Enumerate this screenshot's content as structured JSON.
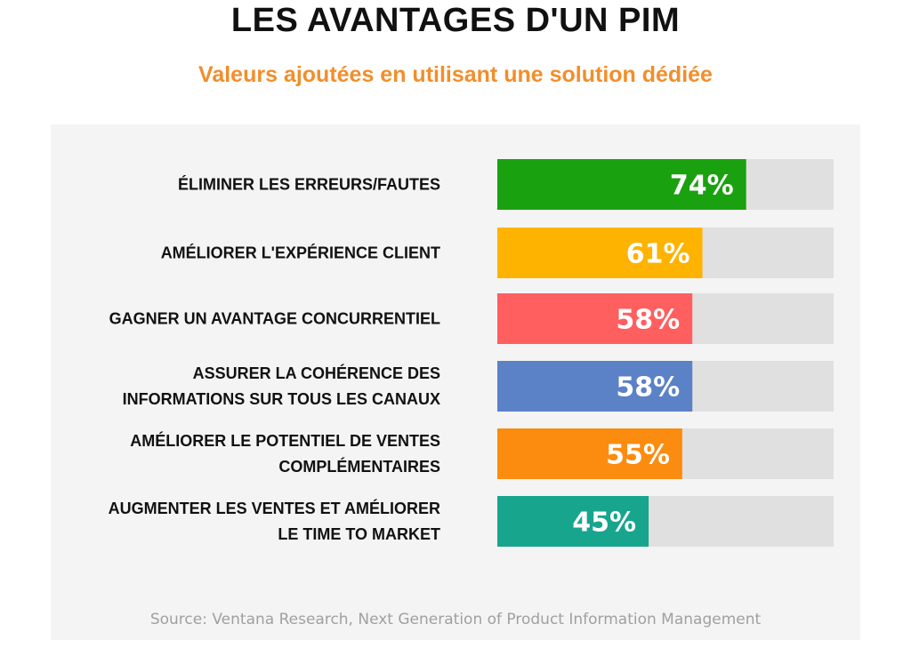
{
  "chart_data": {
    "type": "bar",
    "orientation": "horizontal",
    "title": "LES AVANTAGES D'UN PIM",
    "subtitle": "Valeurs ajoutées en utilisant une solution dédiée",
    "categories": [
      [
        "ÉLIMINER LES ERREURS/FAUTES"
      ],
      [
        "AMÉLIORER L'EXPÉRIENCE CLIENT"
      ],
      [
        "GAGNER UN AVANTAGE CONCURRENTIEL"
      ],
      [
        "ASSURER LA COHÉRENCE DES",
        "INFORMATIONS SUR TOUS LES CANAUX"
      ],
      [
        "AMÉLIORER LE POTENTIEL DE VENTES",
        "COMPLÉMENTAIRES"
      ],
      [
        "AUGMENTER LES VENTES ET AMÉLIORER",
        "LE TIME TO MARKET"
      ]
    ],
    "values": [
      74,
      61,
      58,
      58,
      55,
      45
    ],
    "value_labels": [
      "74%",
      "61%",
      "58%",
      "58%",
      "55%",
      "45%"
    ],
    "colors": [
      "#1aa10f",
      "#fdb300",
      "#ff5f5f",
      "#5b81c7",
      "#fb8c10",
      "#18a58e"
    ],
    "track_color": "#e0e0e0",
    "xlim": [
      0,
      100
    ],
    "source": "Source: Ventana Research, Next Generation of Product Information Management"
  }
}
